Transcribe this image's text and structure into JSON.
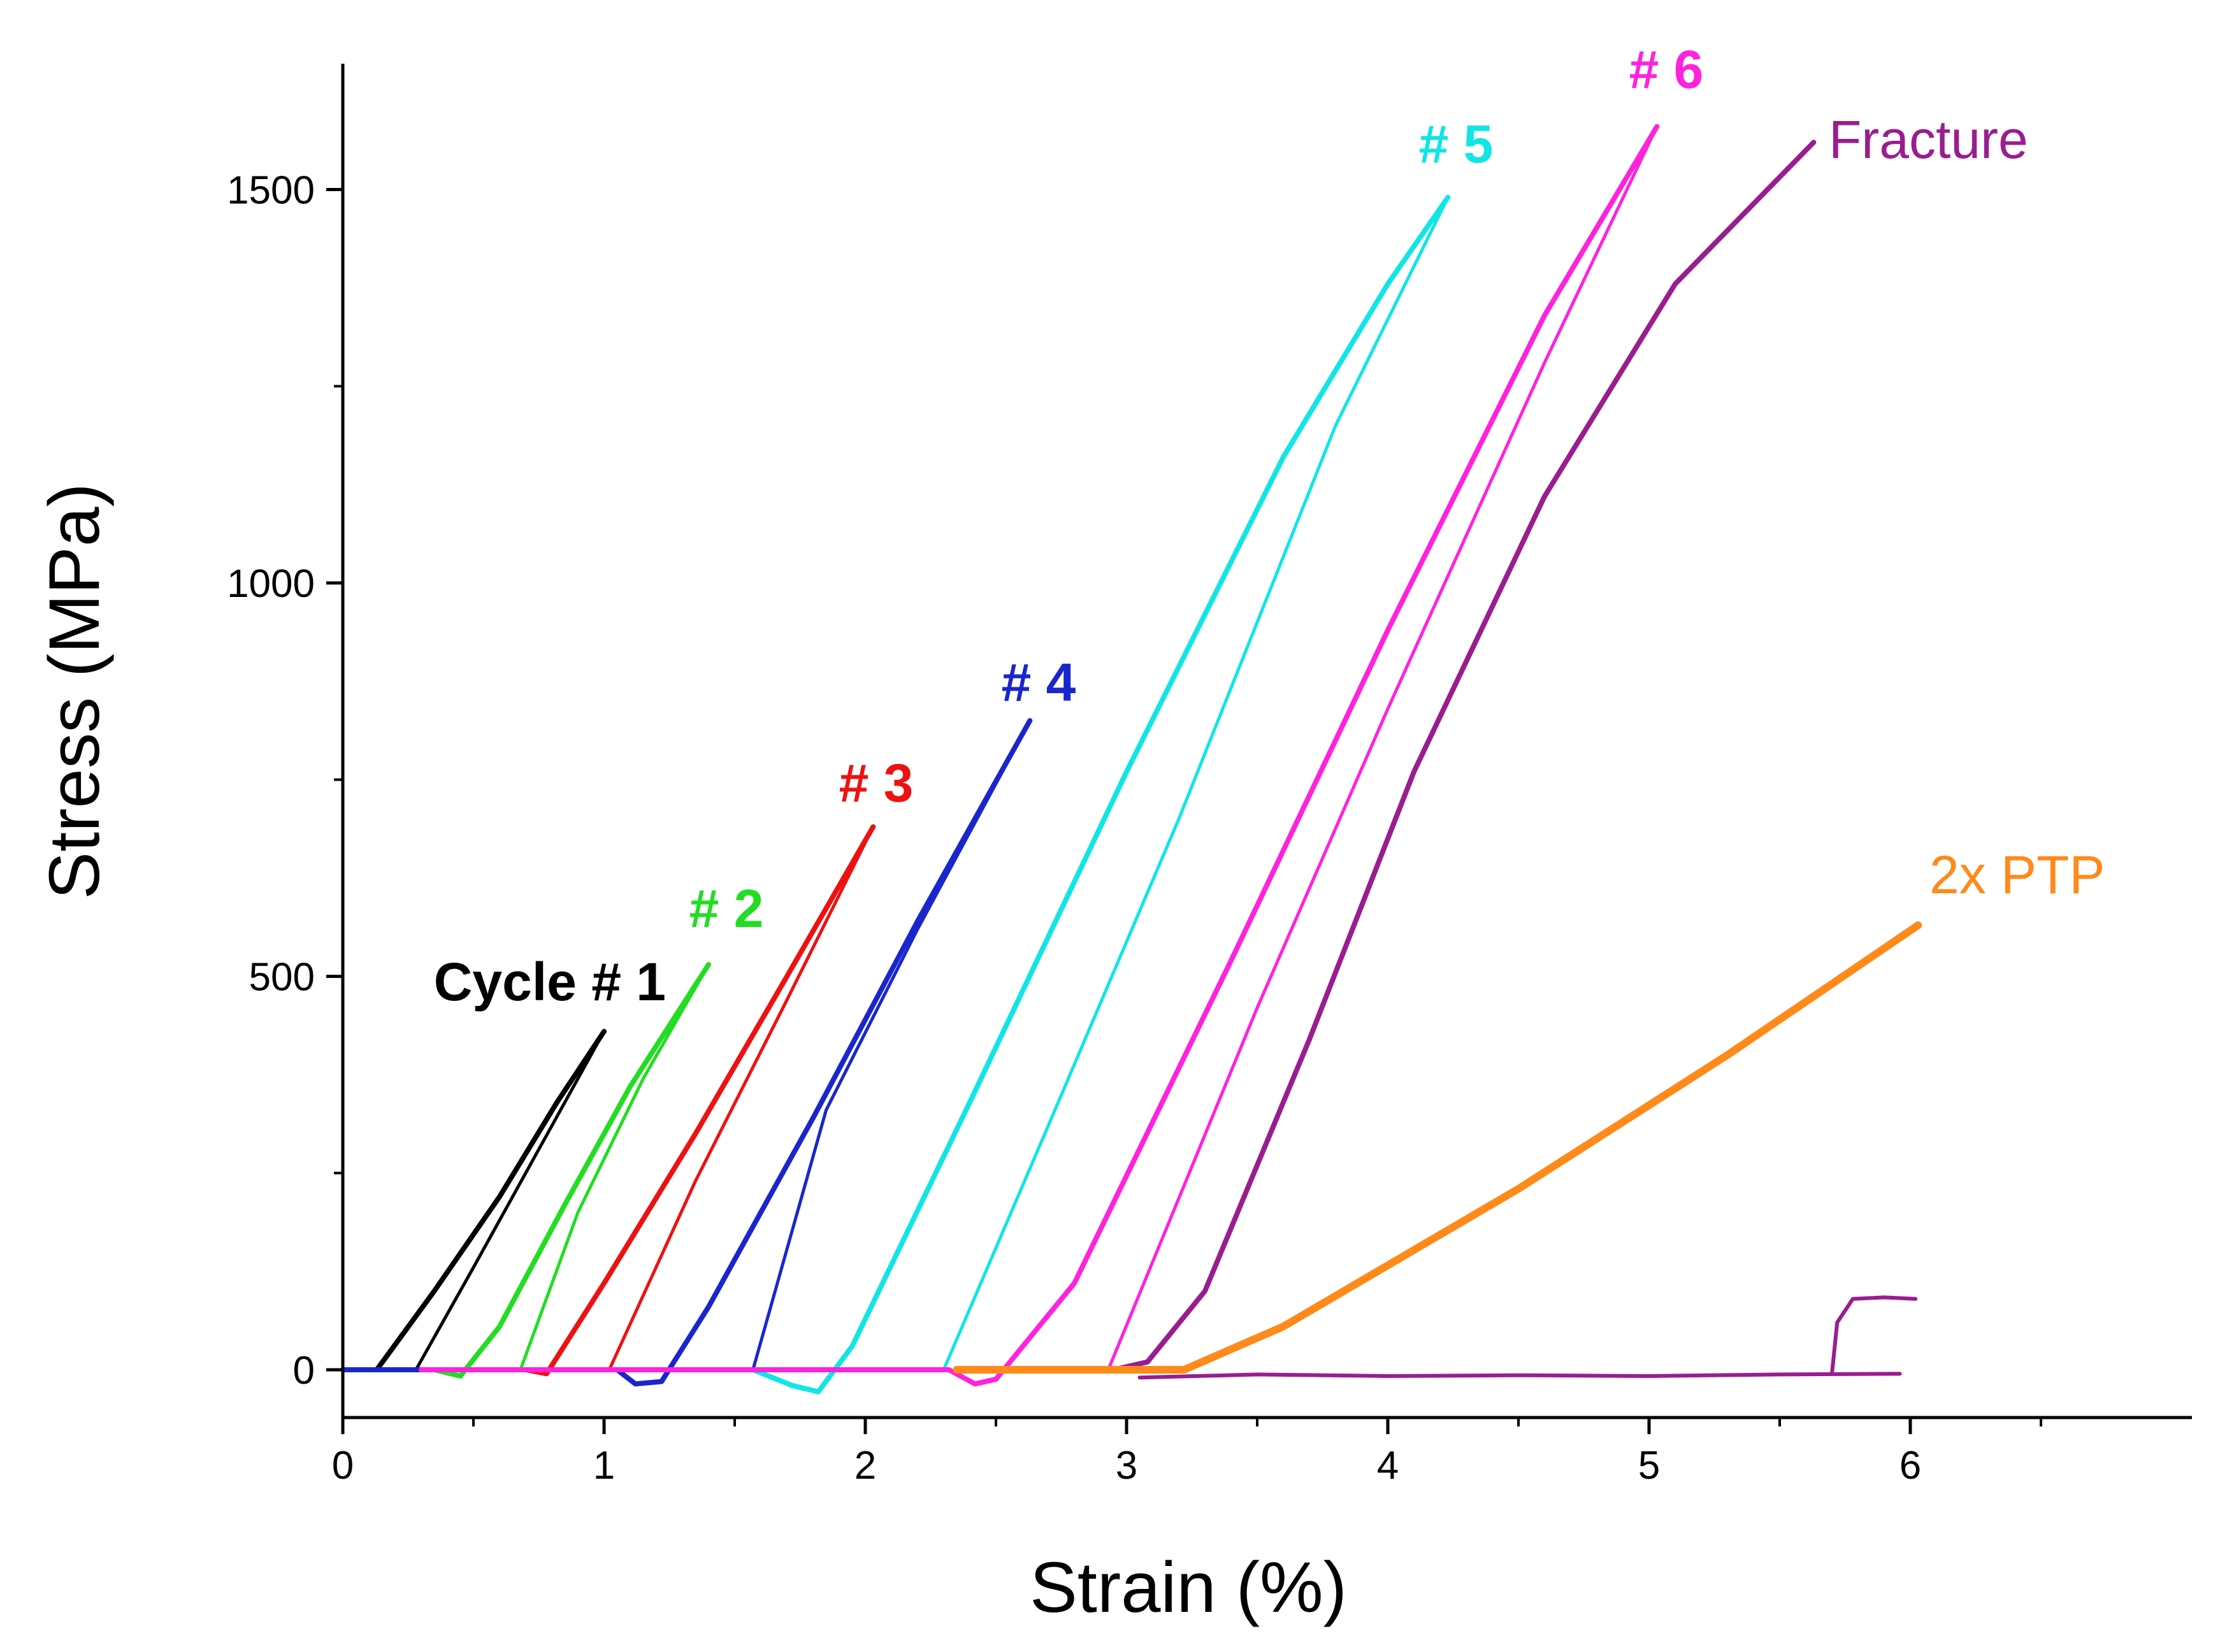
{
  "chart_data": {
    "type": "line",
    "title": "",
    "xlabel": "Strain (%)",
    "ylabel": "Stress (MPa)",
    "xlim": [
      0,
      7.05
    ],
    "ylim": [
      -65,
      1665
    ],
    "xticks": [
      "0",
      "1",
      "2",
      "3",
      "4",
      "5",
      "6"
    ],
    "yticks": [
      "0",
      "500",
      "1000",
      "1500"
    ],
    "grid": false,
    "series": [
      {
        "name": "Cycle # 1",
        "label": "Cycle # 1",
        "color": "#000000",
        "bold_label": true,
        "load": [
          [
            0.13,
            0
          ],
          [
            0.35,
            100
          ],
          [
            0.6,
            220
          ],
          [
            0.82,
            340
          ],
          [
            1.0,
            430
          ]
        ],
        "unload": [
          [
            1.0,
            430
          ],
          [
            0.75,
            280
          ],
          [
            0.5,
            130
          ],
          [
            0.28,
            0
          ]
        ],
        "tail": []
      },
      {
        "name": "# 2",
        "label": "# 2",
        "color": "#22dd22",
        "bold_label": true,
        "load": [
          [
            0,
            0
          ],
          [
            0.35,
            0
          ],
          [
            0.45,
            -8
          ],
          [
            0.6,
            55
          ],
          [
            0.85,
            210
          ],
          [
            1.1,
            360
          ],
          [
            1.4,
            515
          ]
        ],
        "unload": [
          [
            1.4,
            515
          ],
          [
            1.15,
            370
          ],
          [
            0.9,
            200
          ],
          [
            0.68,
            0
          ]
        ],
        "tail": []
      },
      {
        "name": "# 3",
        "label": "# 3",
        "color": "#ee1111",
        "bold_label": true,
        "load": [
          [
            0,
            0
          ],
          [
            0.7,
            0
          ],
          [
            0.78,
            -5
          ],
          [
            1.0,
            110
          ],
          [
            1.35,
            300
          ],
          [
            1.7,
            500
          ],
          [
            2.03,
            690
          ]
        ],
        "unload": [
          [
            2.03,
            690
          ],
          [
            1.7,
            470
          ],
          [
            1.35,
            240
          ],
          [
            1.02,
            0
          ]
        ],
        "tail": []
      },
      {
        "name": "# 4",
        "label": "# 4",
        "color": "#1a26cc",
        "bold_label": true,
        "load": [
          [
            0,
            0
          ],
          [
            1.05,
            0
          ],
          [
            1.12,
            -18
          ],
          [
            1.22,
            -15
          ],
          [
            1.4,
            80
          ],
          [
            1.8,
            320
          ],
          [
            2.2,
            570
          ],
          [
            2.63,
            825
          ]
        ],
        "unload": [
          [
            2.63,
            825
          ],
          [
            2.2,
            560
          ],
          [
            1.85,
            330
          ],
          [
            1.57,
            0
          ]
        ],
        "tail": []
      },
      {
        "name": "# 5",
        "label": "# 5",
        "color": "#11e5e5",
        "bold_label": true,
        "load": [
          [
            1.57,
            0
          ],
          [
            1.72,
            -20
          ],
          [
            1.82,
            -28
          ],
          [
            1.95,
            30
          ],
          [
            2.4,
            340
          ],
          [
            3.0,
            760
          ],
          [
            3.6,
            1160
          ],
          [
            4.0,
            1380
          ],
          [
            4.23,
            1490
          ]
        ],
        "unload": [
          [
            4.23,
            1490
          ],
          [
            3.8,
            1200
          ],
          [
            3.2,
            700
          ],
          [
            2.7,
            310
          ],
          [
            2.3,
            0
          ]
        ],
        "tail": []
      },
      {
        "name": "# 6",
        "label": "# 6",
        "color": "#ff22dd",
        "bold_label": true,
        "load": [
          [
            0.3,
            0
          ],
          [
            2.32,
            0
          ],
          [
            2.42,
            -18
          ],
          [
            2.5,
            -12
          ],
          [
            2.8,
            110
          ],
          [
            3.4,
            520
          ],
          [
            4.0,
            940
          ],
          [
            4.6,
            1340
          ],
          [
            5.03,
            1580
          ]
        ],
        "unload": [
          [
            5.03,
            1580
          ],
          [
            4.6,
            1280
          ],
          [
            4.0,
            840
          ],
          [
            3.5,
            460
          ],
          [
            2.93,
            0
          ]
        ],
        "tail": []
      },
      {
        "name": "Fracture",
        "label": "Fracture",
        "color": "#9a1d8f",
        "bold_label": false,
        "load": [
          [
            2.95,
            0
          ],
          [
            3.08,
            10
          ],
          [
            3.3,
            100
          ],
          [
            3.7,
            420
          ],
          [
            4.1,
            760
          ],
          [
            4.6,
            1110
          ],
          [
            5.1,
            1380
          ],
          [
            5.63,
            1560
          ]
        ],
        "unload": [],
        "tail": [
          [
            3.05,
            -10
          ],
          [
            3.5,
            -6
          ],
          [
            4.0,
            -8
          ],
          [
            4.5,
            -7
          ],
          [
            5.0,
            -8
          ],
          [
            5.5,
            -6
          ],
          [
            5.96,
            -5
          ]
        ]
      },
      {
        "name": "2x PTP",
        "label": "2x PTP",
        "color": "#ff8a1a",
        "bold_label": false,
        "load": [
          [
            2.35,
            0
          ],
          [
            3.22,
            0
          ],
          [
            3.6,
            55
          ],
          [
            4.5,
            230
          ],
          [
            5.3,
            400
          ],
          [
            6.03,
            565
          ]
        ],
        "unload": [],
        "tail": []
      }
    ],
    "annotations": [
      {
        "name": "Fracture secondary trace",
        "color": "#9a1d8f",
        "points": [
          [
            5.7,
            -5
          ],
          [
            5.72,
            60
          ],
          [
            5.78,
            90
          ],
          [
            5.9,
            92
          ],
          [
            6.02,
            90
          ]
        ]
      }
    ]
  }
}
